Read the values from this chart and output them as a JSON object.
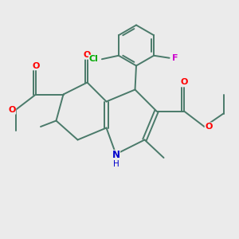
{
  "background_color": "#ebebeb",
  "bond_color": "#4a7a6a",
  "atom_colors": {
    "O": "#ff0000",
    "N": "#0000cc",
    "Cl": "#00aa00",
    "F": "#cc00cc",
    "C": "#4a7a6a"
  },
  "figsize": [
    3.0,
    3.0
  ],
  "dpi": 100
}
